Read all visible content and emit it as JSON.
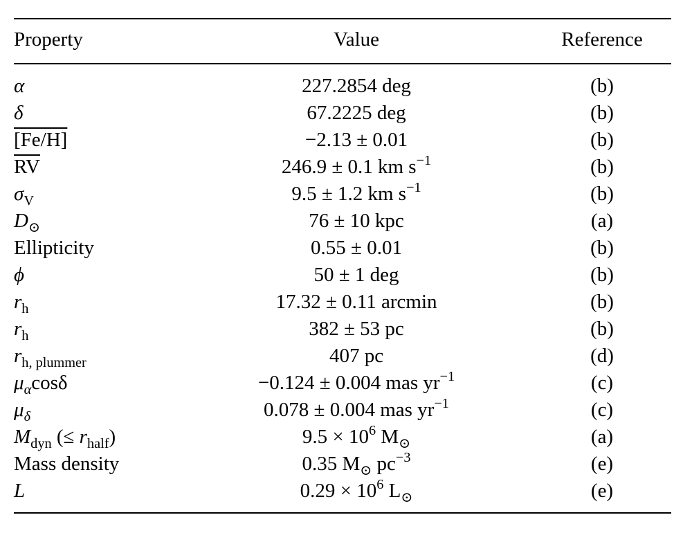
{
  "table": {
    "headers": {
      "property": "Property",
      "value": "Value",
      "reference": "Reference"
    },
    "rows": [
      {
        "property": "α",
        "value": "227.2854 deg",
        "reference": "(b)"
      },
      {
        "property": "δ",
        "value": "67.2225 deg",
        "reference": "(b)"
      },
      {
        "property": "[Fe/H]",
        "value": "−2.13 ± 0.01",
        "reference": "(b)"
      },
      {
        "property": "RV",
        "value": "246.9 ± 0.1 km s",
        "value_sup": "−1",
        "reference": "(b)"
      },
      {
        "property": "σ",
        "property_sub": "V",
        "value": "9.5 ± 1.2 km s",
        "value_sup": "−1",
        "reference": "(b)"
      },
      {
        "property": "D",
        "property_sub": "⊙",
        "value": "76 ± 10 kpc",
        "reference": "(a)"
      },
      {
        "property": "Ellipticity",
        "value": "0.55 ± 0.01",
        "reference": "(b)"
      },
      {
        "property": "ϕ",
        "value": "50 ± 1 deg",
        "reference": "(b)"
      },
      {
        "property": "r",
        "property_sub": "h",
        "value": "17.32 ± 0.11 arcmin",
        "reference": "(b)"
      },
      {
        "property": "r",
        "property_sub": "h",
        "value": "382 ± 53 pc",
        "reference": "(b)"
      },
      {
        "property": "r",
        "property_sub": "h, plummer",
        "value": "407 pc",
        "reference": "(d)"
      },
      {
        "property": "μ",
        "property_sub": "α",
        "property_suffix": "cosδ",
        "value": "−0.124 ± 0.004 mas yr",
        "value_sup": "−1",
        "reference": "(c)"
      },
      {
        "property": "μ",
        "property_sub": "δ",
        "value": "0.078 ± 0.004 mas yr",
        "value_sup": "−1",
        "reference": "(c)"
      },
      {
        "property": "M",
        "property_sub": "dyn",
        "property_suffix": " (≤ ",
        "property_suffix_it": "r",
        "property_suffix_sub": "half",
        "property_suffix_end": ")",
        "value": "9.5 × 10",
        "value_sup": "6",
        "value_after": " M",
        "value_after_sub": "⊙",
        "reference": "(a)"
      },
      {
        "property": "Mass density",
        "value": "0.35 M",
        "value_sub": "⊙",
        "value_mid": " pc",
        "value_sup": "−3",
        "reference": "(e)"
      },
      {
        "property": "L",
        "value": "0.29 × 10",
        "value_sup": "6",
        "value_after": " L",
        "value_after_sub": "⊙",
        "reference": "(e)"
      }
    ]
  }
}
